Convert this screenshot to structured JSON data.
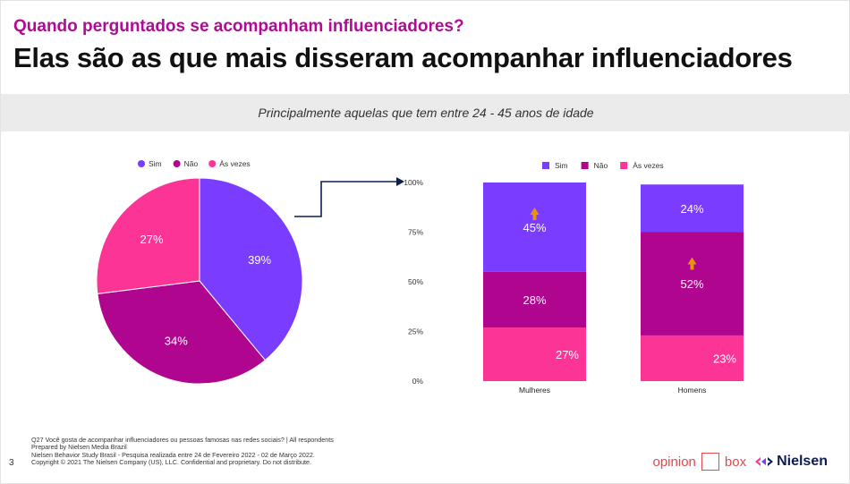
{
  "header": {
    "kicker": "Quando perguntados se acompanham influenciadores?",
    "headline": "Elas são as que mais disseram acompanhar influenciadores"
  },
  "banner": {
    "text": "Principalmente aquelas que tem entre 24 - 45 anos de idade"
  },
  "colors": {
    "sim": "#7a3cff",
    "nao": "#b0068f",
    "as_vezes": "#fb3495",
    "arrow": "#e8930f",
    "connector": "#0c1d52"
  },
  "chart_data": [
    {
      "type": "pie",
      "legend": [
        "Sim",
        "Não",
        "Às vezes"
      ],
      "legend_position": "top",
      "slices": [
        {
          "name": "Sim",
          "value": 39,
          "label": "39%"
        },
        {
          "name": "Não",
          "value": 34,
          "label": "34%"
        },
        {
          "name": "Às vezes",
          "value": 27,
          "label": "27%"
        }
      ]
    },
    {
      "type": "bar",
      "stacked": true,
      "legend": [
        "Sim",
        "Não",
        "Às vezes"
      ],
      "legend_position": "top",
      "categories": [
        "Mulheres",
        "Homens"
      ],
      "ylim": [
        0,
        100
      ],
      "yticks": [
        "0%",
        "25%",
        "50%",
        "75%",
        "100%"
      ],
      "grid": false,
      "series": [
        {
          "name": "Às vezes",
          "values": [
            27,
            23
          ],
          "labels": [
            "27%",
            "23%"
          ]
        },
        {
          "name": "Não",
          "values": [
            28,
            52
          ],
          "labels": [
            "28%",
            "52%"
          ]
        },
        {
          "name": "Sim",
          "values": [
            45,
            24
          ],
          "labels": [
            "45%",
            "24%"
          ]
        }
      ],
      "highlights": [
        {
          "category": "Mulheres",
          "series": "Sim",
          "icon": "up-arrow-icon"
        },
        {
          "category": "Homens",
          "series": "Não",
          "icon": "up-arrow-icon"
        }
      ]
    }
  ],
  "footer": {
    "notes": [
      "Q27 Você gosta de acompanhar influenciadores ou pessoas famosas nas redes sociais? | All respondents",
      "Prepared by Nielsen Media Brazil",
      "Nielsen Behavior Study Brasil - Pesquisa realizada entre  24 de Fevereiro 2022 - 02 de Março 2022.",
      "Copyright © 2021 The Nielsen Company (US), LLC. Confidential and proprietary. Do not distribute."
    ],
    "page_number": "3",
    "logo_opinion": "opinion",
    "logo_box": "box",
    "logo_nielsen": "Nielsen"
  }
}
